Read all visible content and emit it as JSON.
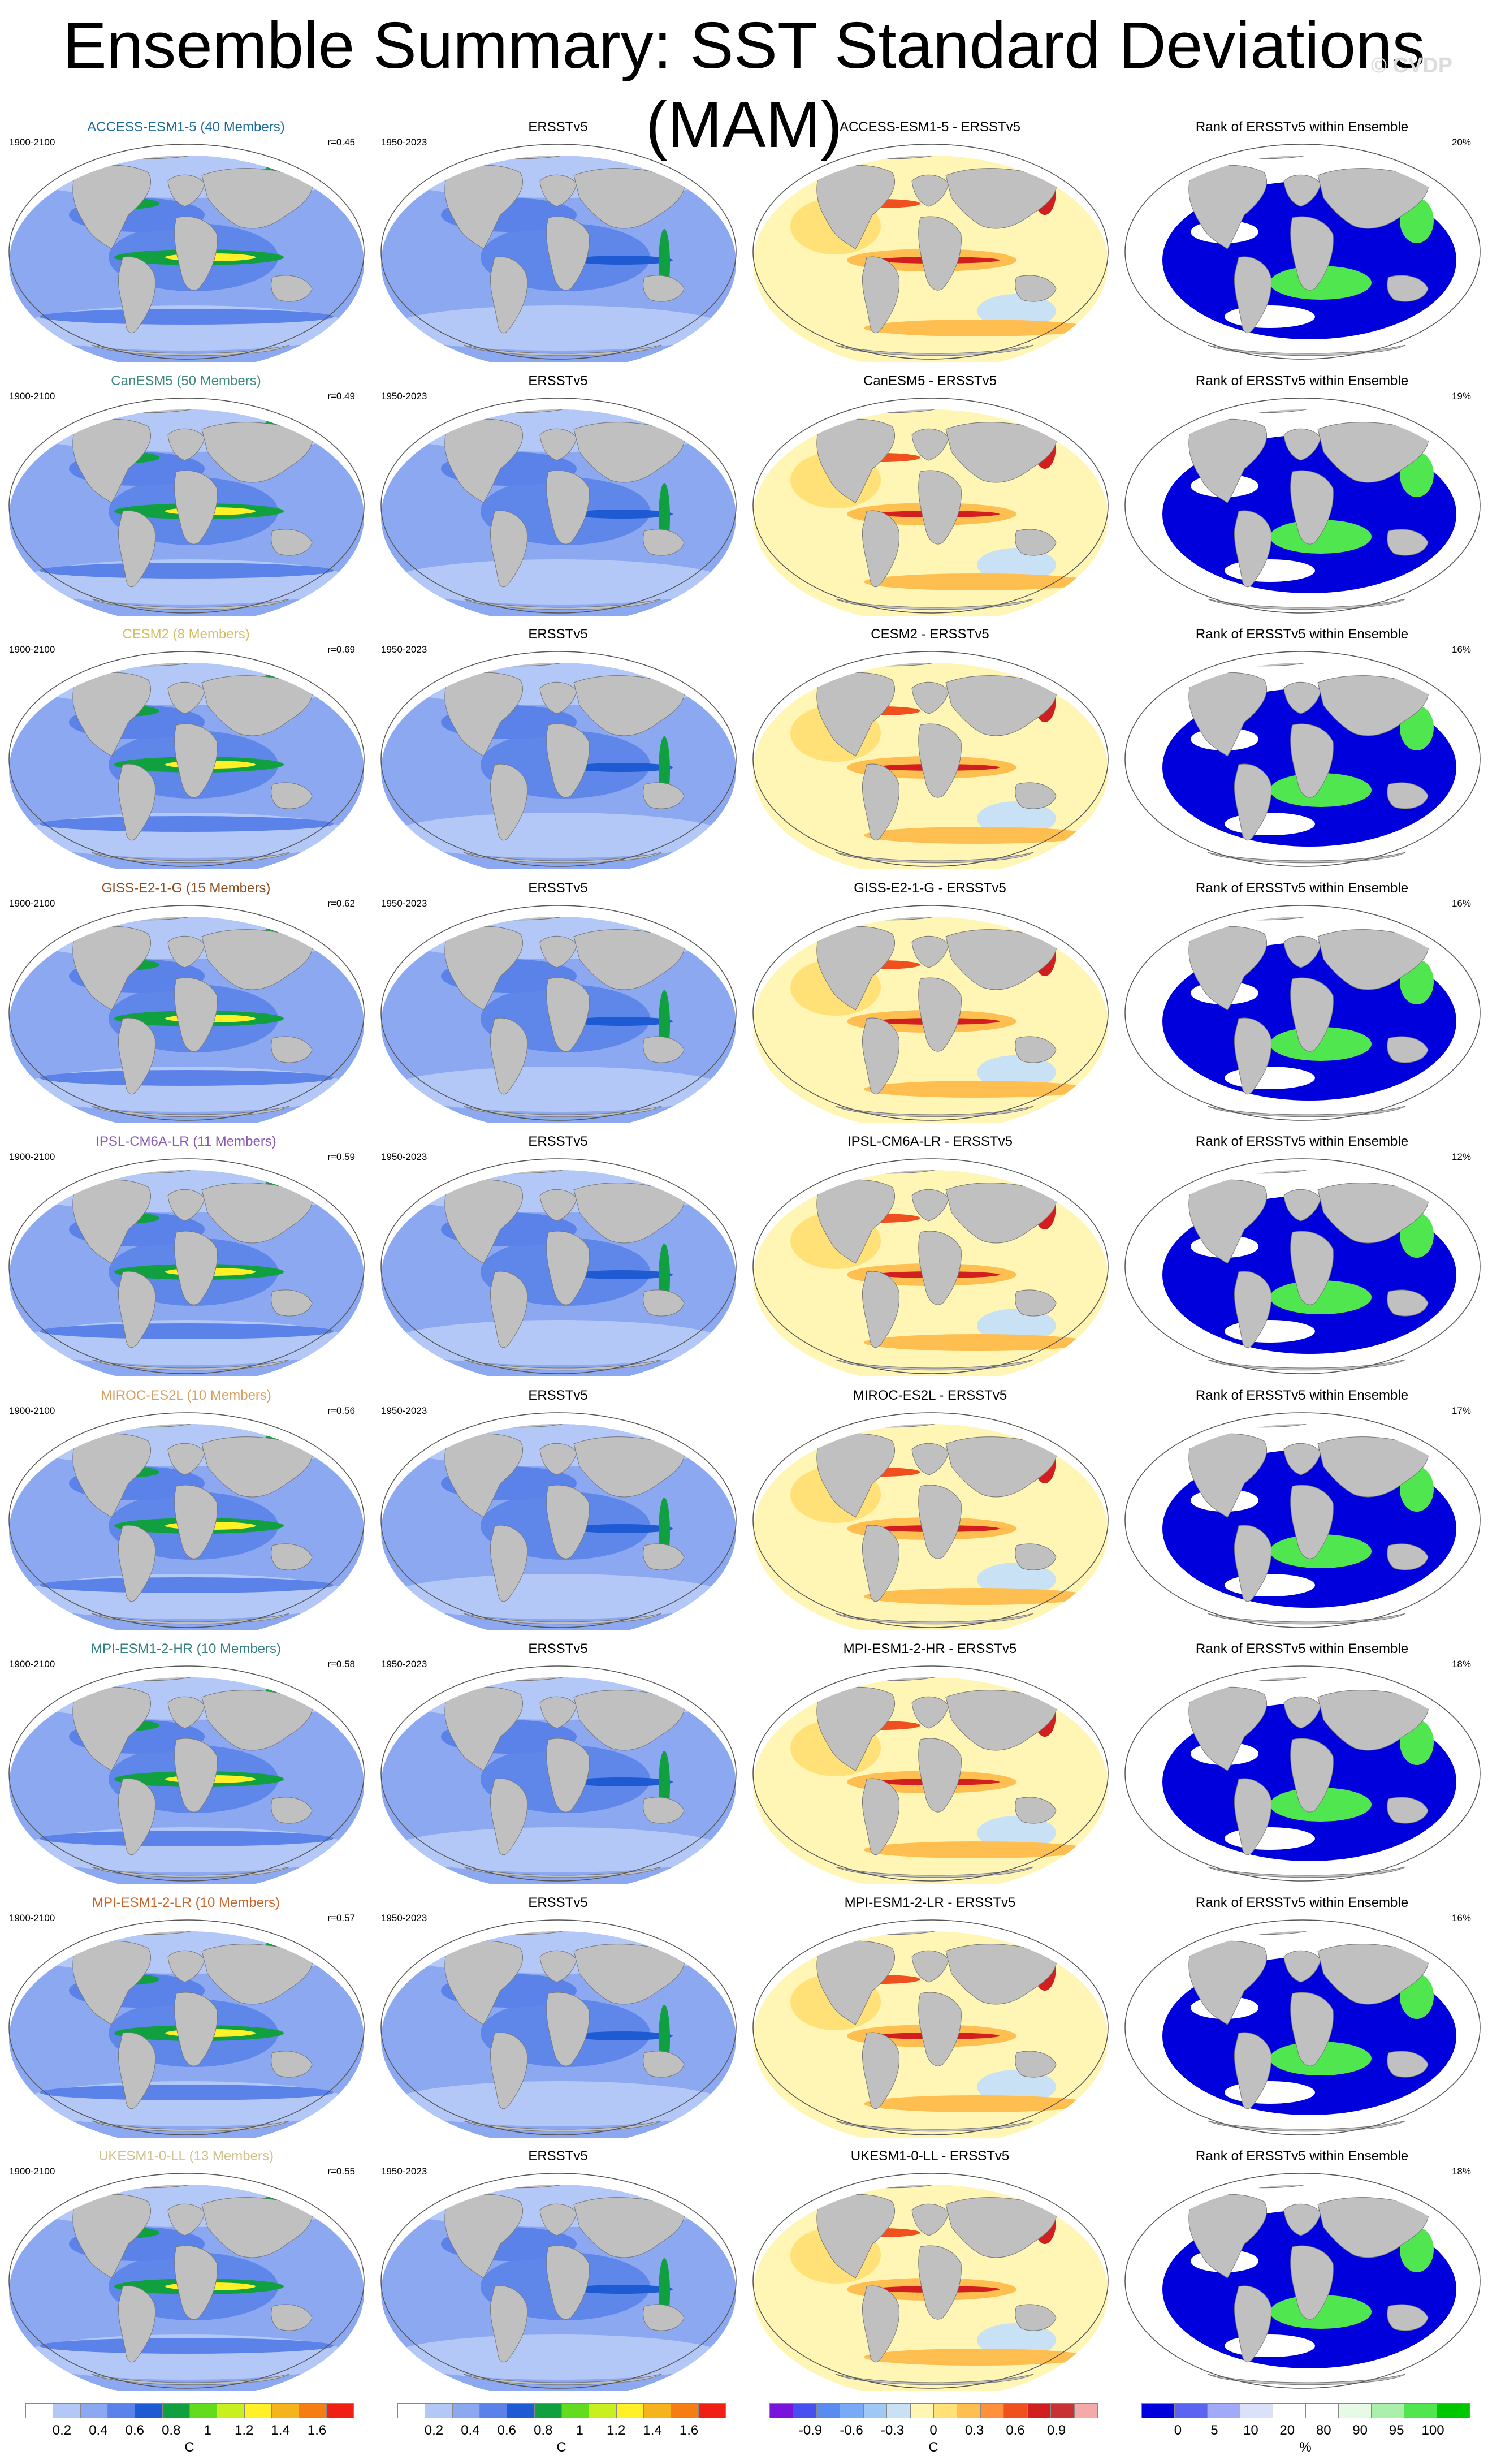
{
  "title": "Ensemble Summary: SST Standard Deviations (MAM)",
  "watermark": "© CVDP",
  "obs_label": "ERSSTv5",
  "obs_years": "1950-2023",
  "rank_title": "Rank of ERSSTv5 within Ensemble",
  "rows": [
    {
      "model_label": "ACCESS-ESM1-5 (40 Members)",
      "model_color": "#1a6aa0",
      "years": "1900-2100",
      "r": "r=0.45",
      "diff_label": "ACCESS-ESM1-5 - ERSSTv5",
      "pct": "20%"
    },
    {
      "model_label": "CanESM5 (50 Members)",
      "model_color": "#3f8a7f",
      "years": "1900-2100",
      "r": "r=0.49",
      "diff_label": "CanESM5 - ERSSTv5",
      "pct": "19%"
    },
    {
      "model_label": "CESM2 (8 Members)",
      "model_color": "#d2bf62",
      "years": "1900-2100",
      "r": "r=0.69",
      "diff_label": "CESM2 - ERSSTv5",
      "pct": "16%"
    },
    {
      "model_label": "GISS-E2-1-G (15 Members)",
      "model_color": "#8a4a1c",
      "years": "1900-2100",
      "r": "r=0.62",
      "diff_label": "GISS-E2-1-G - ERSSTv5",
      "pct": "16%"
    },
    {
      "model_label": "IPSL-CM6A-LR (11 Members)",
      "model_color": "#8a5ab4",
      "years": "1900-2100",
      "r": "r=0.59",
      "diff_label": "IPSL-CM6A-LR - ERSSTv5",
      "pct": "12%"
    },
    {
      "model_label": "MIROC-ES2L (10 Members)",
      "model_color": "#d8a060",
      "years": "1900-2100",
      "r": "r=0.56",
      "diff_label": "MIROC-ES2L - ERSSTv5",
      "pct": "17%"
    },
    {
      "model_label": "MPI-ESM1-2-HR (10 Members)",
      "model_color": "#2f8080",
      "years": "1900-2100",
      "r": "r=0.58",
      "diff_label": "MPI-ESM1-2-HR - ERSSTv5",
      "pct": "18%"
    },
    {
      "model_label": "MPI-ESM1-2-LR (10 Members)",
      "model_color": "#c8642a",
      "years": "1900-2100",
      "r": "r=0.57",
      "diff_label": "MPI-ESM1-2-LR - ERSSTv5",
      "pct": "16%"
    },
    {
      "model_label": "UKESM1-0-LL (13 Members)",
      "model_color": "#d2c08c",
      "years": "1900-2100",
      "r": "r=0.55",
      "diff_label": "UKESM1-0-LL - ERSSTv5",
      "pct": "18%"
    }
  ],
  "colorbars": [
    {
      "ticks": [
        "0.2",
        "0.4",
        "0.6",
        "0.8",
        "1",
        "1.2",
        "1.4",
        "1.6"
      ],
      "unit": "C",
      "colors": [
        "#ffffff",
        "#b4c8f8",
        "#8ca8f0",
        "#5a82e8",
        "#1e5ad2",
        "#10a040",
        "#64dc1e",
        "#c8f01e",
        "#fff028",
        "#f5b41e",
        "#f57d14",
        "#f01e14"
      ]
    },
    {
      "ticks": [
        "0.2",
        "0.4",
        "0.6",
        "0.8",
        "1",
        "1.2",
        "1.4",
        "1.6"
      ],
      "unit": "C",
      "colors": [
        "#ffffff",
        "#b4c8f8",
        "#8ca8f0",
        "#5a82e8",
        "#1e5ad2",
        "#10a040",
        "#64dc1e",
        "#c8f01e",
        "#fff028",
        "#f5b41e",
        "#f57d14",
        "#f01e14"
      ]
    },
    {
      "ticks": [
        "-0.9",
        "-0.6",
        "-0.3",
        "0",
        "0.3",
        "0.6",
        "0.9"
      ],
      "unit": "C",
      "colors": [
        "#7814dc",
        "#4650f0",
        "#5a8cf0",
        "#78aaf5",
        "#a0c8f5",
        "#c8e1f5",
        "#fff5b4",
        "#ffe178",
        "#ffbe50",
        "#ff913c",
        "#f0501e",
        "#d21e1e",
        "#c83232",
        "#f5aaaa"
      ]
    },
    {
      "ticks": [
        "0",
        "5",
        "10",
        "20",
        "80",
        "90",
        "95",
        "100"
      ],
      "unit": "%",
      "colors": [
        "#0000dc",
        "#5a64f0",
        "#a0aaf8",
        "#dce1fa",
        "#ffffff",
        "#ffffff",
        "#e6fae6",
        "#aaf0aa",
        "#50e650",
        "#00c800"
      ]
    }
  ]
}
